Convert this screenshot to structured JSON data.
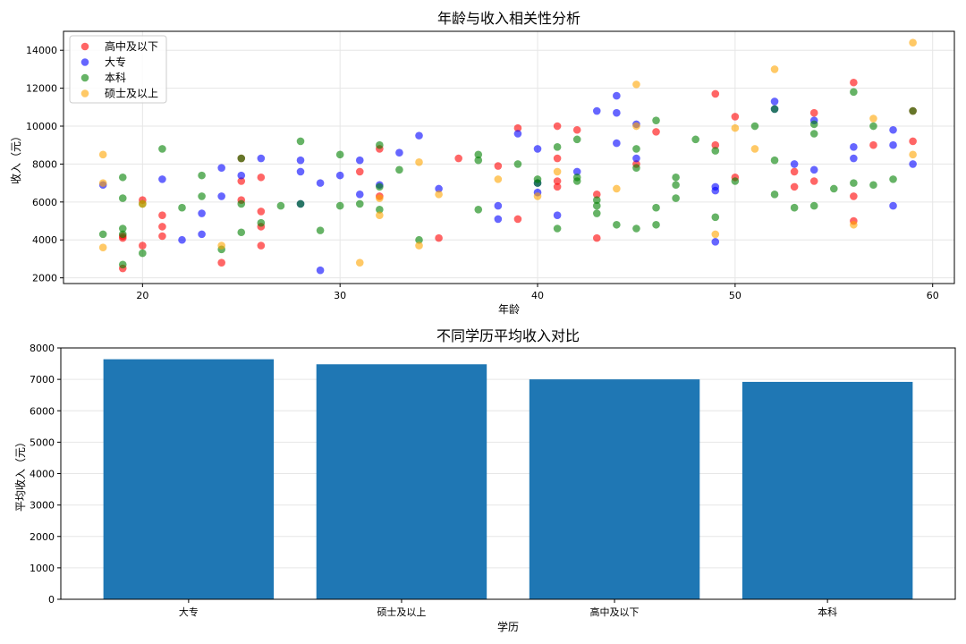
{
  "chart_data": [
    {
      "type": "scatter",
      "title": "年龄与收入相关性分析",
      "xlabel": "年龄",
      "ylabel": "收入（元）",
      "xlim": [
        16,
        61.1
      ],
      "ylim": [
        1700,
        15000
      ],
      "xticks": [
        "20",
        "30",
        "40",
        "50",
        "60"
      ],
      "yticks": [
        "2000",
        "4000",
        "6000",
        "8000",
        "10000",
        "12000",
        "14000"
      ],
      "grid": true,
      "legend_position": "top-left",
      "series": [
        {
          "name": "高中及以下",
          "color": "#ff0000",
          "points": [
            [
              19,
              2500
            ],
            [
              19,
              4100
            ],
            [
              19,
              4200
            ],
            [
              20,
              3700
            ],
            [
              20,
              6100
            ],
            [
              21,
              5300
            ],
            [
              21,
              4700
            ],
            [
              21,
              4200
            ],
            [
              24,
              2800
            ],
            [
              25,
              6100
            ],
            [
              25,
              7100
            ],
            [
              25,
              8300
            ],
            [
              26,
              3700
            ],
            [
              26,
              4700
            ],
            [
              26,
              5500
            ],
            [
              26,
              7300
            ],
            [
              31,
              7600
            ],
            [
              32,
              6300
            ],
            [
              32,
              8800
            ],
            [
              35,
              4100
            ],
            [
              36,
              8300
            ],
            [
              38,
              7900
            ],
            [
              39,
              9900
            ],
            [
              39,
              5100
            ],
            [
              41,
              6800
            ],
            [
              41,
              7100
            ],
            [
              41,
              8300
            ],
            [
              41,
              10000
            ],
            [
              42,
              9800
            ],
            [
              43,
              6400
            ],
            [
              43,
              4100
            ],
            [
              45,
              8000
            ],
            [
              46,
              9700
            ],
            [
              49,
              11700
            ],
            [
              49,
              9000
            ],
            [
              50,
              7300
            ],
            [
              50,
              10500
            ],
            [
              53,
              6800
            ],
            [
              53,
              7600
            ],
            [
              54,
              7100
            ],
            [
              54,
              10700
            ],
            [
              56,
              12300
            ],
            [
              56,
              6300
            ],
            [
              56,
              5000
            ],
            [
              57,
              9000
            ],
            [
              59,
              9200
            ],
            [
              59,
              10800
            ]
          ]
        },
        {
          "name": "大专",
          "color": "#0000ff",
          "points": [
            [
              18,
              6900
            ],
            [
              21,
              7200
            ],
            [
              22,
              4000
            ],
            [
              23,
              5400
            ],
            [
              23,
              4300
            ],
            [
              24,
              6300
            ],
            [
              24,
              7800
            ],
            [
              25,
              7400
            ],
            [
              26,
              8300
            ],
            [
              28,
              8200
            ],
            [
              28,
              7600
            ],
            [
              28,
              5900
            ],
            [
              29,
              7000
            ],
            [
              29,
              2400
            ],
            [
              30,
              7400
            ],
            [
              31,
              8200
            ],
            [
              31,
              6400
            ],
            [
              32,
              6900
            ],
            [
              33,
              8600
            ],
            [
              34,
              9500
            ],
            [
              35,
              6700
            ],
            [
              38,
              5800
            ],
            [
              38,
              5100
            ],
            [
              39,
              9600
            ],
            [
              40,
              6500
            ],
            [
              40,
              7000
            ],
            [
              40,
              8800
            ],
            [
              41,
              5300
            ],
            [
              42,
              7600
            ],
            [
              43,
              10800
            ],
            [
              44,
              11600
            ],
            [
              44,
              10700
            ],
            [
              44,
              9100
            ],
            [
              45,
              10100
            ],
            [
              45,
              8300
            ],
            [
              49,
              6800
            ],
            [
              49,
              6600
            ],
            [
              49,
              3900
            ],
            [
              52,
              11300
            ],
            [
              52,
              10900
            ],
            [
              53,
              8000
            ],
            [
              54,
              7700
            ],
            [
              54,
              10300
            ],
            [
              56,
              8900
            ],
            [
              56,
              8300
            ],
            [
              58,
              9800
            ],
            [
              58,
              9000
            ],
            [
              58,
              5800
            ],
            [
              59,
              8000
            ]
          ]
        },
        {
          "name": "本科",
          "color": "#008000",
          "points": [
            [
              18,
              4300
            ],
            [
              19,
              2700
            ],
            [
              19,
              4300
            ],
            [
              19,
              4600
            ],
            [
              19,
              6200
            ],
            [
              19,
              7300
            ],
            [
              20,
              3300
            ],
            [
              20,
              5900
            ],
            [
              21,
              8800
            ],
            [
              22,
              5700
            ],
            [
              23,
              6300
            ],
            [
              23,
              7400
            ],
            [
              24,
              3500
            ],
            [
              25,
              4400
            ],
            [
              25,
              5900
            ],
            [
              25,
              8300
            ],
            [
              26,
              4900
            ],
            [
              27,
              5800
            ],
            [
              28,
              5900
            ],
            [
              28,
              9200
            ],
            [
              29,
              4500
            ],
            [
              30,
              5800
            ],
            [
              30,
              8500
            ],
            [
              31,
              5900
            ],
            [
              32,
              5600
            ],
            [
              32,
              6800
            ],
            [
              32,
              9000
            ],
            [
              33,
              7700
            ],
            [
              34,
              4000
            ],
            [
              37,
              8200
            ],
            [
              37,
              8500
            ],
            [
              37,
              5600
            ],
            [
              39,
              8000
            ],
            [
              40,
              7000
            ],
            [
              40,
              7200
            ],
            [
              41,
              4600
            ],
            [
              41,
              8900
            ],
            [
              42,
              7300
            ],
            [
              42,
              7100
            ],
            [
              42,
              9300
            ],
            [
              43,
              5800
            ],
            [
              43,
              5400
            ],
            [
              43,
              6100
            ],
            [
              44,
              4800
            ],
            [
              45,
              4600
            ],
            [
              45,
              7800
            ],
            [
              45,
              8800
            ],
            [
              46,
              4800
            ],
            [
              46,
              10300
            ],
            [
              46,
              5700
            ],
            [
              47,
              6200
            ],
            [
              47,
              7300
            ],
            [
              47,
              6900
            ],
            [
              48,
              9300
            ],
            [
              49,
              5200
            ],
            [
              49,
              8700
            ],
            [
              50,
              7100
            ],
            [
              51,
              10000
            ],
            [
              52,
              6400
            ],
            [
              52,
              8200
            ],
            [
              52,
              10900
            ],
            [
              53,
              5700
            ],
            [
              54,
              5800
            ],
            [
              54,
              9600
            ],
            [
              54,
              10100
            ],
            [
              55,
              6700
            ],
            [
              56,
              7000
            ],
            [
              56,
              11800
            ],
            [
              57,
              6900
            ],
            [
              57,
              10000
            ],
            [
              58,
              7200
            ],
            [
              59,
              10800
            ]
          ]
        },
        {
          "name": "硕士及以上",
          "color": "#ffa500",
          "points": [
            [
              18,
              8500
            ],
            [
              18,
              7000
            ],
            [
              18,
              3600
            ],
            [
              20,
              5900
            ],
            [
              24,
              3700
            ],
            [
              31,
              2800
            ],
            [
              32,
              5300
            ],
            [
              32,
              6200
            ],
            [
              34,
              3700
            ],
            [
              34,
              8100
            ],
            [
              35,
              6400
            ],
            [
              38,
              7200
            ],
            [
              40,
              6300
            ],
            [
              41,
              7600
            ],
            [
              44,
              6700
            ],
            [
              45,
              10000
            ],
            [
              45,
              12200
            ],
            [
              49,
              4300
            ],
            [
              50,
              9900
            ],
            [
              51,
              8800
            ],
            [
              52,
              13000
            ],
            [
              56,
              4800
            ],
            [
              57,
              10400
            ],
            [
              59,
              8500
            ],
            [
              59,
              14400
            ]
          ]
        }
      ]
    },
    {
      "type": "bar",
      "title": "不同学历平均收入对比",
      "xlabel": "学历",
      "ylabel": "平均收入（元）",
      "categories": [
        "大专",
        "硕士及以上",
        "高中及以下",
        "本科"
      ],
      "values": [
        7640,
        7480,
        7000,
        6920
      ],
      "ylim": [
        0,
        8000
      ],
      "yticks": [
        "0",
        "1000",
        "2000",
        "3000",
        "4000",
        "5000",
        "6000",
        "7000",
        "8000"
      ],
      "color": "#1f77b4",
      "grid": "y"
    }
  ]
}
